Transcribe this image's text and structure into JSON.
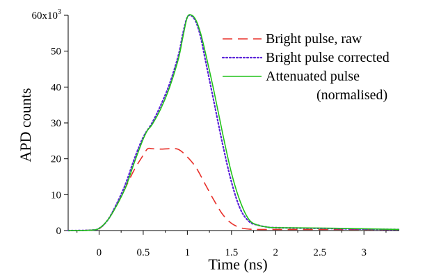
{
  "chart_data": {
    "type": "line",
    "title": "",
    "xlabel": "Time (ns)",
    "ylabel": "APD counts",
    "y_scale_label": "60x10",
    "y_scale_exponent": "3",
    "xlim": [
      -0.35,
      3.4
    ],
    "ylim": [
      0,
      60
    ],
    "x_ticks": [
      0,
      0.5,
      1,
      1.5,
      2,
      2.5,
      3
    ],
    "x_tick_labels": [
      "0",
      "0.5",
      "1",
      "1.5",
      "2",
      "2.5",
      "3"
    ],
    "y_ticks": [
      0,
      10,
      20,
      30,
      40,
      50
    ],
    "y_tick_labels": [
      "0",
      "10",
      "20",
      "30",
      "40",
      "50"
    ],
    "grid": false,
    "legend_position": "top-right",
    "series": [
      {
        "name": "Bright pulse, raw",
        "color": "#e8302a",
        "style": "dashed",
        "x": [
          -0.35,
          -0.1,
          0.0,
          0.1,
          0.2,
          0.3,
          0.4,
          0.5,
          0.55,
          0.6,
          0.7,
          0.8,
          0.9,
          1.0,
          1.1,
          1.2,
          1.3,
          1.4,
          1.5,
          1.6,
          1.7,
          1.8,
          2.0,
          2.5,
          3.0,
          3.4
        ],
        "y": [
          0,
          0.1,
          0.5,
          3,
          7,
          12,
          17,
          21,
          22.8,
          22.8,
          22.7,
          22.8,
          22.6,
          20.5,
          17.5,
          13,
          8.5,
          4.5,
          2,
          0.8,
          0.4,
          0.3,
          0.3,
          0.3,
          0.3,
          0.3
        ]
      },
      {
        "name": "Bright pulse corrected",
        "color": "#5a22d8",
        "style": "dotted",
        "x": [
          -0.35,
          -0.1,
          0.0,
          0.1,
          0.2,
          0.3,
          0.4,
          0.5,
          0.6,
          0.7,
          0.8,
          0.9,
          0.95,
          1.0,
          1.05,
          1.1,
          1.15,
          1.2,
          1.3,
          1.4,
          1.5,
          1.6,
          1.7,
          1.8,
          1.9,
          2.0,
          2.5,
          3.0,
          3.4
        ],
        "y": [
          0,
          0.1,
          0.6,
          3,
          7.5,
          13,
          20,
          26,
          30,
          35,
          41,
          49,
          55,
          59.5,
          59.8,
          58,
          54,
          48,
          36,
          24,
          13.5,
          6,
          2.5,
          1.5,
          1.0,
          0.8,
          0.6,
          0.4,
          0.3
        ]
      },
      {
        "name": "Attenuated pulse",
        "name_line2": "(normalised)",
        "color": "#22c21a",
        "style": "solid",
        "x": [
          -0.35,
          -0.1,
          0.0,
          0.1,
          0.2,
          0.3,
          0.4,
          0.5,
          0.55,
          0.6,
          0.7,
          0.8,
          0.9,
          0.95,
          1.0,
          1.05,
          1.1,
          1.15,
          1.2,
          1.3,
          1.4,
          1.5,
          1.6,
          1.7,
          1.8,
          1.9,
          2.0,
          2.5,
          3.0,
          3.4
        ],
        "y": [
          0,
          0.1,
          0.6,
          3,
          7,
          12,
          19,
          25.5,
          28,
          29.5,
          34,
          40,
          48,
          54,
          59.5,
          60,
          58.5,
          55,
          50,
          39,
          27,
          16,
          8,
          3,
          1.5,
          1.0,
          0.8,
          0.7,
          0.5,
          0.3
        ]
      }
    ]
  }
}
